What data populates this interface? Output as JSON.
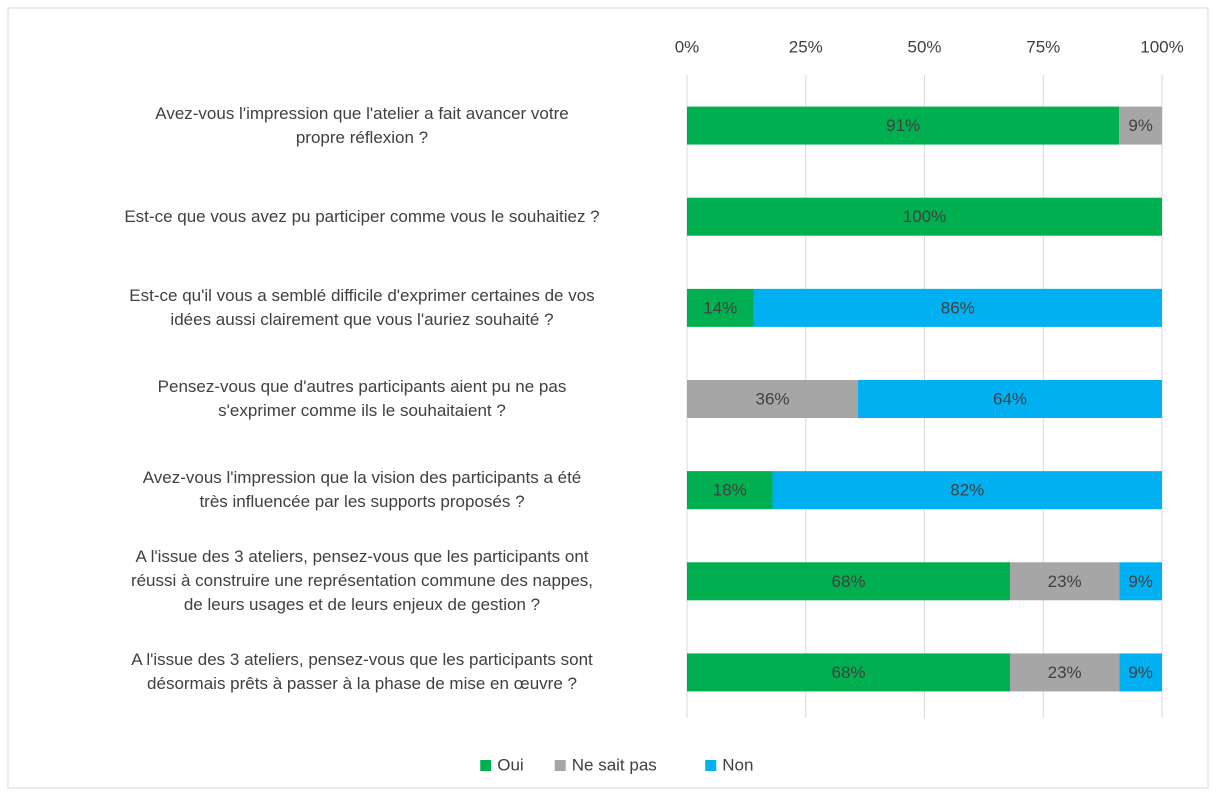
{
  "chart_data": {
    "type": "stacked-barh",
    "categories": [
      "Avez-vous l'impression que l'atelier a fait avancer votre\npropre réflexion ?",
      "Est-ce que vous avez pu participer comme vous le souhaitiez ?",
      "Est-ce qu'il vous a semblé difficile d'exprimer certaines de vos\nidées aussi clairement que vous l'auriez souhaité ?",
      "Pensez-vous que d'autres participants aient pu ne pas\ns'exprimer comme ils le souhaitaient ?",
      "Avez-vous l'impression que la vision des participants a été\ntrès influencée par les supports proposés ?",
      "A l'issue des 3 ateliers, pensez-vous que les participants ont\nréussi à construire une représentation commune des nappes,\nde leurs usages et de leurs enjeux de gestion ?",
      "A l'issue des 3 ateliers, pensez-vous que les participants sont\ndésormais prêts à passer à la phase de mise en œuvre ?"
    ],
    "series": [
      {
        "name": "Oui",
        "color": "#00b050",
        "values": [
          91,
          100,
          14,
          null,
          18,
          68,
          68
        ],
        "value_labels": [
          "91%",
          "100%",
          "14%",
          null,
          "18%",
          "68%",
          "68%"
        ]
      },
      {
        "name": "Ne sait pas",
        "color": "#a6a6a6",
        "values": [
          9,
          null,
          null,
          36,
          null,
          23,
          23
        ],
        "value_labels": [
          "9%",
          null,
          null,
          "36%",
          null,
          "23%",
          "23%"
        ]
      },
      {
        "name": "Non",
        "color": "#00b0f0",
        "values": [
          null,
          null,
          86,
          64,
          82,
          9,
          9
        ],
        "value_labels": [
          null,
          null,
          "86%",
          "64%",
          "82%",
          "9%",
          "9%"
        ]
      }
    ],
    "xlim": [
      0,
      100
    ],
    "xticks": [
      {
        "value": 0,
        "label": "0%"
      },
      {
        "value": 25,
        "label": "25%"
      },
      {
        "value": 50,
        "label": "50%"
      },
      {
        "value": 75,
        "label": "75%"
      },
      {
        "value": 100,
        "label": "100%"
      }
    ],
    "grid": true,
    "legend": "bottom"
  }
}
